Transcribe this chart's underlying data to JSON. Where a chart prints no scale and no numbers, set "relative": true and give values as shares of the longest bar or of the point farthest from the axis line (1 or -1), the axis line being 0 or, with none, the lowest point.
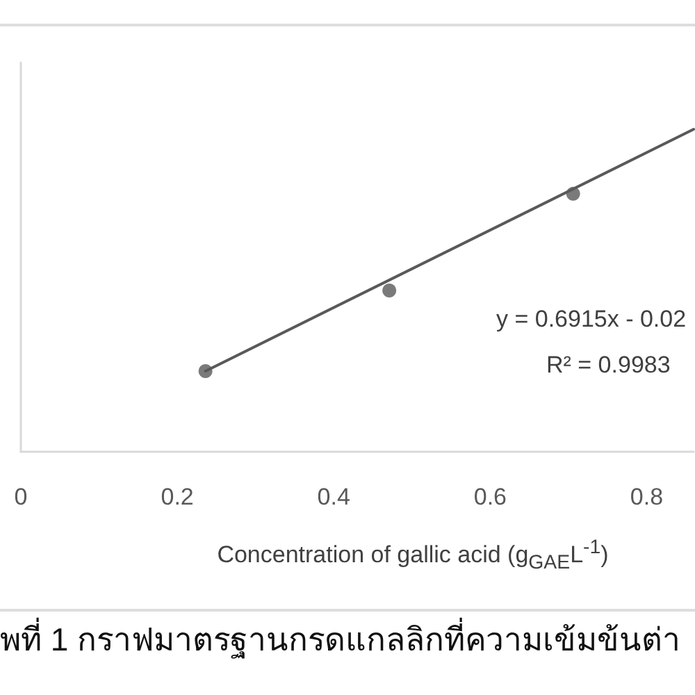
{
  "chart_data": {
    "type": "scatter",
    "xlabel": "Concentration of gallic acid (g$_{GAE}$L$^{-1}$)",
    "relative": true,
    "xlim": [
      0,
      0.86
    ],
    "xticks": [
      0,
      0.2,
      0.4,
      0.6,
      0.8
    ],
    "tick_labels": "x",
    "grid": false,
    "series": [
      {
        "color": "#595959",
        "marker": "circle",
        "x": [
          0.236,
          0.471,
          0.706
        ],
        "values": [
          0.25,
          0.5,
          0.8
        ]
      },
      {
        "type": "line",
        "color": "#595959",
        "marker": "none",
        "line_style": "solid",
        "x": [
          0.236,
          0.86
        ],
        "values": [
          0.25,
          1
        ]
      }
    ],
    "annotations": [
      "y = 0.6915x - 0.02",
      "R² = 0.9983",
      "พที่ 1 กราฟมาตรฐานกรดแกลลิกที่ความเข้มข้นต่า"
    ]
  }
}
